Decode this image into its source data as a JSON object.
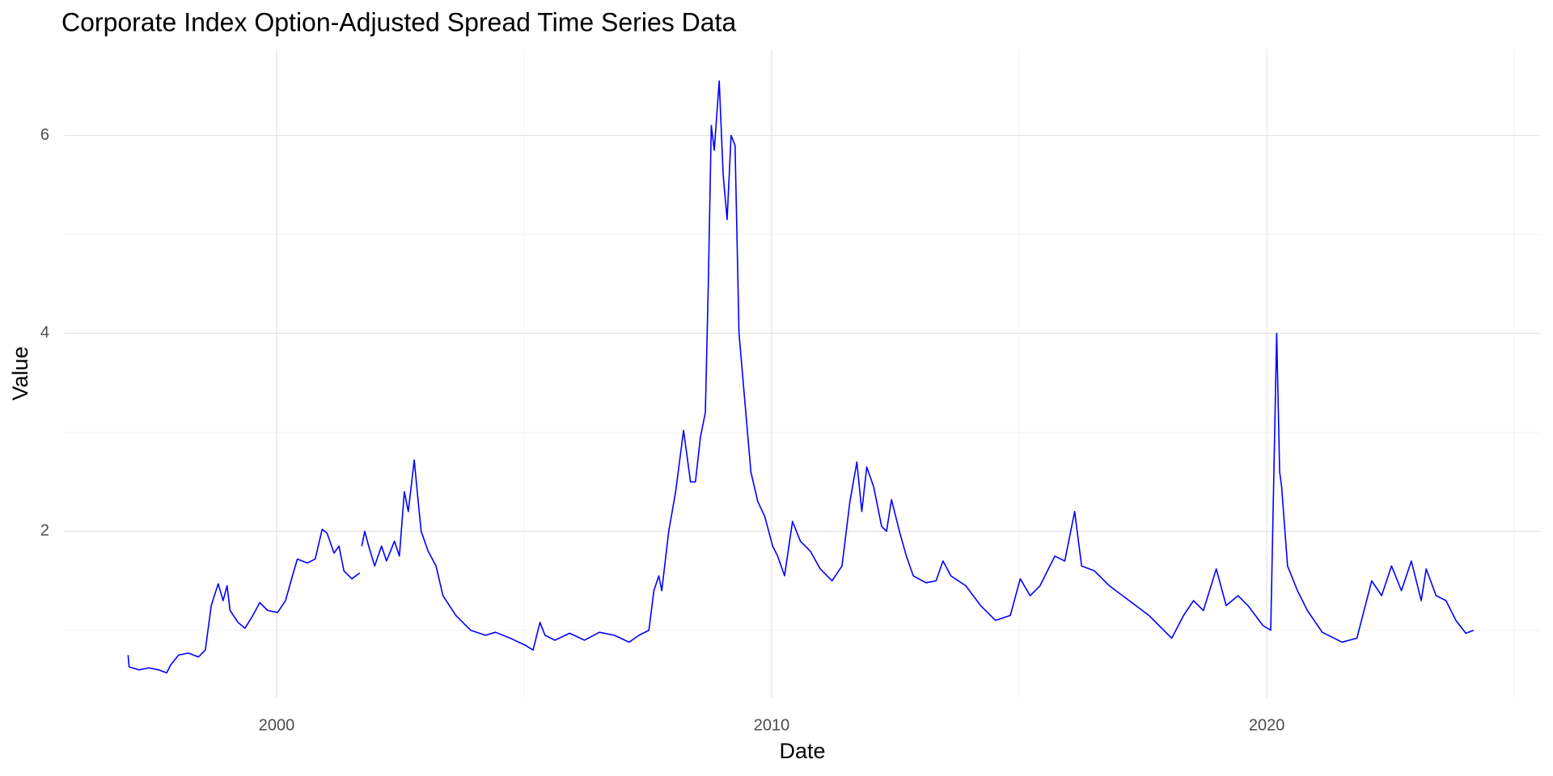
{
  "chart_data": {
    "type": "line",
    "title": "Corporate Index Option-Adjusted Spread Time Series Data",
    "x_label": "Date",
    "y_label": "Value",
    "x": [
      1997.0,
      1997.02,
      1997.22,
      1997.42,
      1997.62,
      1997.78,
      1997.86,
      1998.02,
      1998.22,
      1998.42,
      1998.56,
      1998.68,
      1998.82,
      1998.92,
      1999.0,
      1999.06,
      1999.22,
      1999.36,
      1999.52,
      1999.66,
      1999.82,
      2000.02,
      2000.18,
      2000.32,
      2000.42,
      2000.62,
      2000.78,
      2000.92,
      2001.02,
      2001.16,
      2001.26,
      2001.36,
      2001.52,
      2001.68,
      2001.7,
      2001.72,
      2001.78,
      2001.86,
      2001.98,
      2002.12,
      2002.22,
      2002.38,
      2002.48,
      2002.58,
      2002.66,
      2002.78,
      2002.86,
      2002.92,
      2003.06,
      2003.22,
      2003.36,
      2003.62,
      2003.92,
      2004.22,
      2004.42,
      2004.72,
      2005.02,
      2005.18,
      2005.32,
      2005.42,
      2005.62,
      2005.92,
      2006.22,
      2006.52,
      2006.82,
      2007.12,
      2007.32,
      2007.52,
      2007.62,
      2007.72,
      2007.78,
      2007.92,
      2008.06,
      2008.22,
      2008.36,
      2008.46,
      2008.56,
      2008.66,
      2008.72,
      2008.78,
      2008.84,
      2008.94,
      2009.02,
      2009.1,
      2009.18,
      2009.26,
      2009.34,
      2009.46,
      2009.58,
      2009.72,
      2009.86,
      2010.02,
      2010.12,
      2010.26,
      2010.42,
      2010.58,
      2010.78,
      2010.98,
      2011.22,
      2011.42,
      2011.58,
      2011.72,
      2011.82,
      2011.92,
      2012.06,
      2012.22,
      2012.32,
      2012.42,
      2012.58,
      2012.72,
      2012.86,
      2013.12,
      2013.32,
      2013.46,
      2013.62,
      2013.92,
      2014.22,
      2014.52,
      2014.82,
      2015.02,
      2015.22,
      2015.42,
      2015.72,
      2015.92,
      2016.12,
      2016.26,
      2016.52,
      2016.82,
      2017.22,
      2017.62,
      2018.08,
      2018.32,
      2018.52,
      2018.72,
      2018.98,
      2019.18,
      2019.42,
      2019.62,
      2019.92,
      2020.08,
      2020.14,
      2020.2,
      2020.26,
      2020.3,
      2020.42,
      2020.62,
      2020.82,
      2021.12,
      2021.52,
      2021.82,
      2022.12,
      2022.32,
      2022.52,
      2022.72,
      2022.92,
      2023.12,
      2023.22,
      2023.42,
      2023.62,
      2023.82,
      2024.02,
      2024.18
    ],
    "series": [
      {
        "name": "Value",
        "color": "#0000ff",
        "values": [
          0.75,
          0.63,
          0.6,
          0.62,
          0.6,
          0.57,
          0.65,
          0.75,
          0.77,
          0.73,
          0.8,
          1.25,
          1.47,
          1.3,
          1.45,
          1.2,
          1.08,
          1.02,
          1.15,
          1.28,
          1.2,
          1.18,
          1.3,
          1.55,
          1.72,
          1.68,
          1.72,
          2.02,
          1.98,
          1.78,
          1.85,
          1.6,
          1.52,
          1.58,
          null,
          1.85,
          2.0,
          1.85,
          1.65,
          1.85,
          1.7,
          1.9,
          1.75,
          2.4,
          2.2,
          2.72,
          2.3,
          2.0,
          1.8,
          1.65,
          1.35,
          1.15,
          1.0,
          0.95,
          0.98,
          0.92,
          0.85,
          0.8,
          1.08,
          0.95,
          0.9,
          0.97,
          0.9,
          0.98,
          0.95,
          0.88,
          0.95,
          1.0,
          1.4,
          1.55,
          1.4,
          2.0,
          2.4,
          3.02,
          2.5,
          2.5,
          2.95,
          3.2,
          4.5,
          6.1,
          5.85,
          6.55,
          5.6,
          5.15,
          6.0,
          5.9,
          4.0,
          3.3,
          2.6,
          2.3,
          2.15,
          1.85,
          1.75,
          1.55,
          2.1,
          1.9,
          1.8,
          1.62,
          1.5,
          1.65,
          2.3,
          2.7,
          2.2,
          2.65,
          2.45,
          2.05,
          2.0,
          2.32,
          2.0,
          1.75,
          1.55,
          1.48,
          1.5,
          1.7,
          1.55,
          1.45,
          1.25,
          1.1,
          1.15,
          1.52,
          1.35,
          1.45,
          1.75,
          1.7,
          2.2,
          1.65,
          1.6,
          1.45,
          1.3,
          1.15,
          0.92,
          1.15,
          1.3,
          1.2,
          1.62,
          1.25,
          1.35,
          1.25,
          1.05,
          1.0,
          2.5,
          4.0,
          2.6,
          2.45,
          1.65,
          1.4,
          1.2,
          0.98,
          0.88,
          0.92,
          1.5,
          1.35,
          1.65,
          1.4,
          1.7,
          1.3,
          1.62,
          1.35,
          1.3,
          1.1,
          0.97,
          1.0
        ]
      }
    ],
    "xlim": [
      1995.72,
      2025.52
    ],
    "xticks": [
      2000,
      2010,
      2020
    ],
    "xminorticks": [
      2005,
      2015,
      2025
    ],
    "ylim": [
      0.32,
      6.87
    ],
    "yticks": [
      2,
      4,
      6
    ],
    "yminorticks": [
      1,
      3,
      5
    ],
    "grid": true
  }
}
